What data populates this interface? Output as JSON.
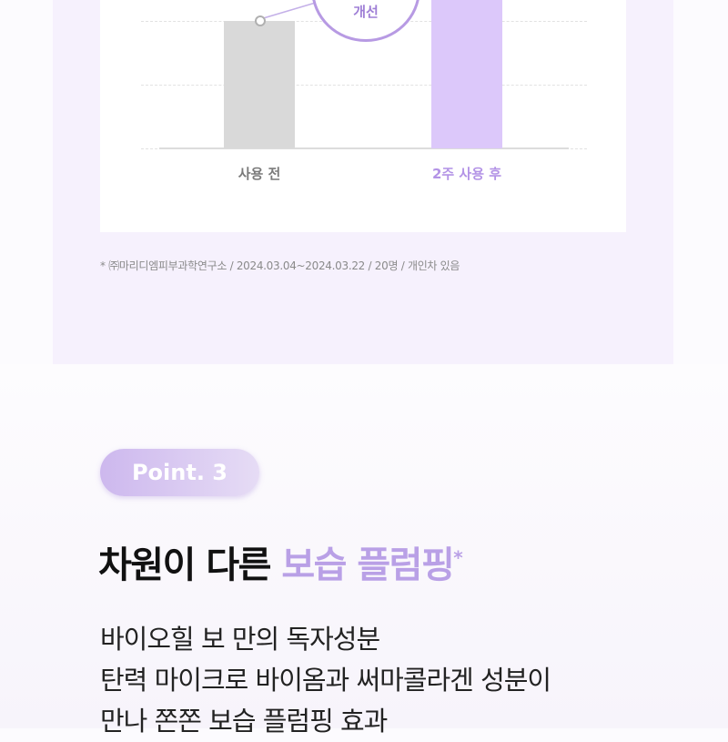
{
  "chart_data": {
    "type": "bar",
    "categories": [
      "사용 전",
      "2주 사용 후"
    ],
    "values": [
      2,
      2.6
    ],
    "colors": [
      "#d9d9d9",
      "#dcc8fa"
    ],
    "label_colors": [
      "#7a7a7a",
      "#b393e6"
    ],
    "grid": true,
    "annotation": "개선",
    "ylim": [
      0,
      2.6
    ]
  },
  "footnote": "* ㈜마리디엠피부과학연구소 / 2024.03.04~2024.03.22 / 20명 / 개인차 있음",
  "point": {
    "badge": "Point. 3",
    "title_plain": "차원이 다른 ",
    "title_highlight": "보습 플럼핑",
    "title_mark": "*",
    "body": [
      "바이오힐 보 만의 독자성분",
      "탄력 마이크로 바이옴과 써마콜라겐 성분이",
      "만나 쫀쫀 보습 플럼핑 효과"
    ],
    "accent_color": "#b9a0e6"
  }
}
